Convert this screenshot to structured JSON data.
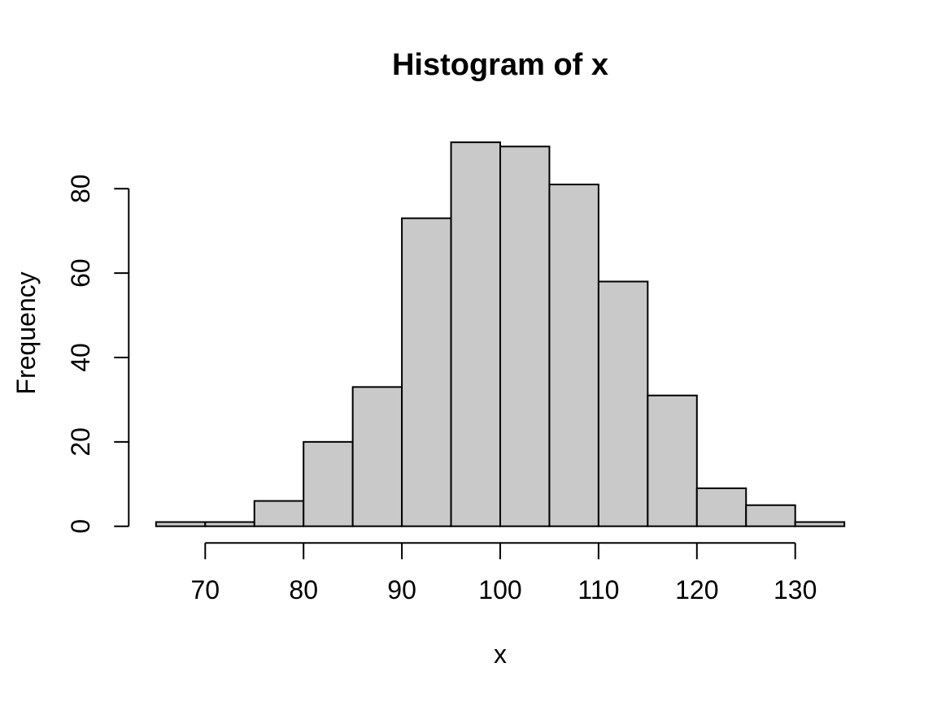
{
  "page": {
    "background": "#ffffff"
  },
  "chart_data": {
    "type": "bar",
    "subtype": "histogram",
    "title": "Histogram of x",
    "xlabel": "x",
    "ylabel": "Frequency",
    "bin_edges": [
      65,
      70,
      75,
      80,
      85,
      90,
      95,
      100,
      105,
      110,
      115,
      120,
      125,
      130,
      135
    ],
    "counts": [
      1,
      1,
      6,
      20,
      33,
      73,
      91,
      90,
      81,
      58,
      31,
      9,
      5,
      1
    ],
    "x_ticks": [
      70,
      80,
      90,
      100,
      110,
      120,
      130
    ],
    "y_ticks": [
      0,
      20,
      40,
      60,
      80
    ],
    "xlim": [
      65,
      135
    ],
    "ylim": [
      0,
      91
    ],
    "grid": false,
    "legend": null,
    "colors": {
      "bar_fill": "#C9C9C9",
      "bar_stroke": "#000000",
      "axis": "#000000",
      "text": "#000000",
      "background": "#ffffff"
    }
  }
}
